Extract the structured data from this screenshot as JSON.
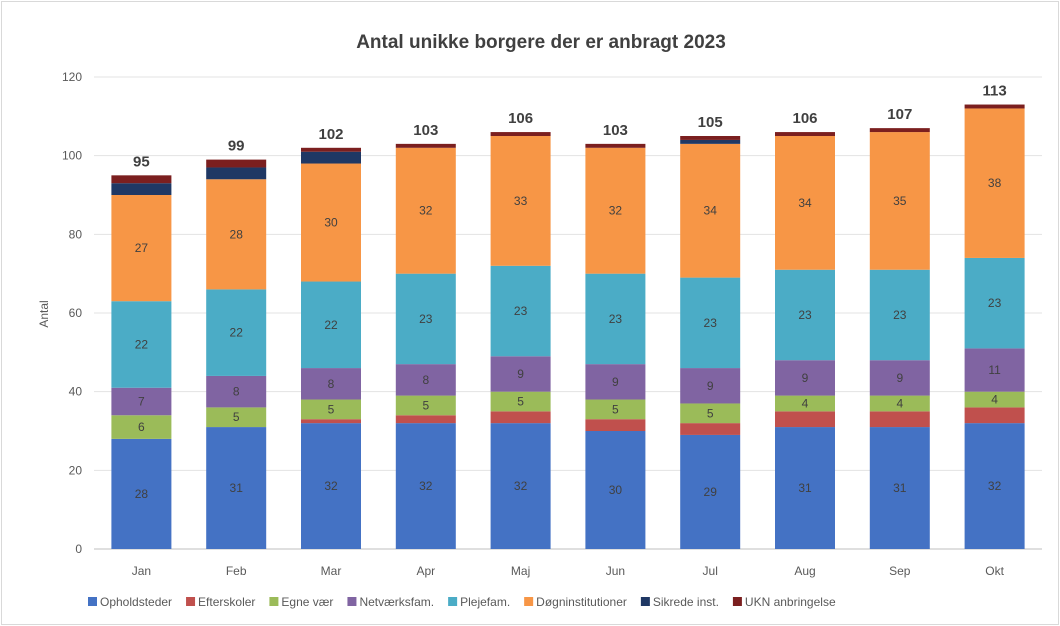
{
  "chart_data": {
    "type": "bar",
    "stacked": true,
    "title": "Antal unikke borgere der er anbragt 2023",
    "xlabel": "",
    "ylabel": "Antal",
    "ylim": [
      0,
      120
    ],
    "yticks": [
      0,
      20,
      40,
      60,
      80,
      100,
      120
    ],
    "grid": true,
    "legend_position": "bottom",
    "categories": [
      "Jan",
      "Feb",
      "Mar",
      "Apr",
      "Maj",
      "Jun",
      "Jul",
      "Aug",
      "Sep",
      "Okt"
    ],
    "totals": [
      95,
      99,
      102,
      103,
      106,
      103,
      105,
      106,
      107,
      113
    ],
    "series": [
      {
        "name": "Opholdsteder",
        "color": "#4472c4",
        "show_labels": true,
        "values": [
          28,
          31,
          32,
          32,
          32,
          30,
          29,
          31,
          31,
          32
        ]
      },
      {
        "name": "Efterskoler",
        "color": "#c0504d",
        "show_labels": false,
        "values": [
          0,
          0,
          1,
          2,
          3,
          3,
          3,
          4,
          4,
          4
        ]
      },
      {
        "name": "Egne vær",
        "color": "#9bbb59",
        "show_labels": true,
        "values": [
          6,
          5,
          5,
          5,
          5,
          5,
          5,
          4,
          4,
          4
        ]
      },
      {
        "name": "Netværksfam.",
        "color": "#8064a2",
        "show_labels": true,
        "values": [
          7,
          8,
          8,
          8,
          9,
          9,
          9,
          9,
          9,
          11
        ]
      },
      {
        "name": "Plejefam.",
        "color": "#4bacc6",
        "show_labels": true,
        "values": [
          22,
          22,
          22,
          23,
          23,
          23,
          23,
          23,
          23,
          23
        ]
      },
      {
        "name": "Døgninstitutioner",
        "color": "#f79646",
        "show_labels": true,
        "values": [
          27,
          28,
          30,
          32,
          33,
          32,
          34,
          34,
          35,
          38
        ]
      },
      {
        "name": "Sikrede inst.",
        "color": "#1f3864",
        "show_labels": false,
        "values": [
          3,
          3,
          3,
          0,
          0,
          0,
          1,
          0,
          0,
          0
        ]
      },
      {
        "name": "UKN anbringelse",
        "color": "#7b1f1f",
        "show_labels": false,
        "values": [
          2,
          2,
          1,
          1,
          1,
          1,
          1,
          1,
          1,
          1
        ]
      }
    ]
  }
}
